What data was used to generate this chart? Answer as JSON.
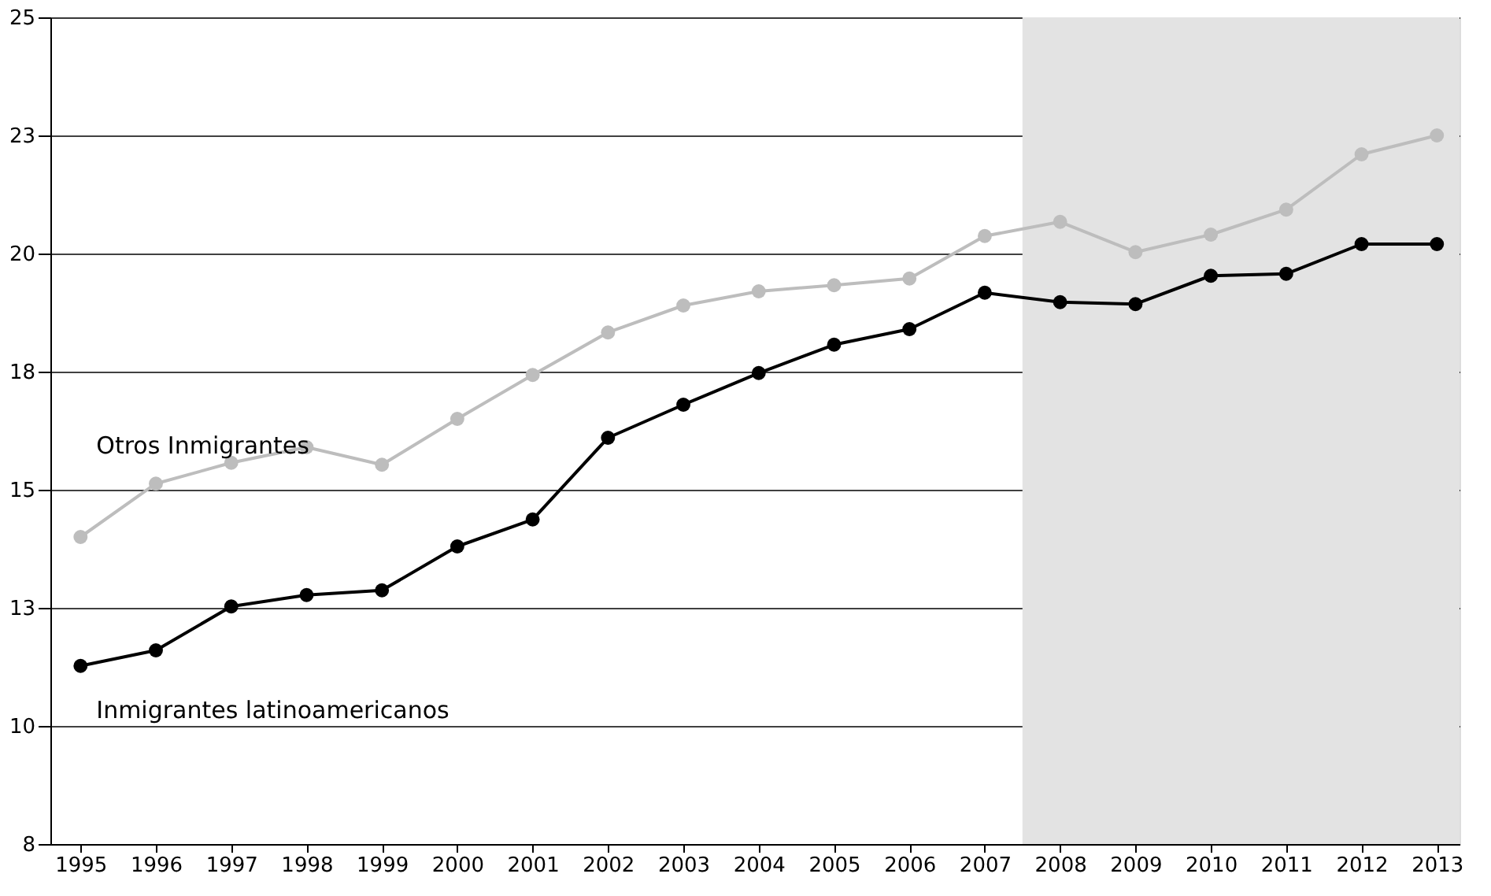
{
  "chart_data": {
    "type": "line",
    "x": [
      1995,
      1996,
      1997,
      1998,
      1999,
      2000,
      2001,
      2002,
      2003,
      2004,
      2005,
      2006,
      2007,
      2008,
      2009,
      2010,
      2011,
      2012,
      2013
    ],
    "xlim": [
      1994.6,
      2013.3
    ],
    "xticks": [
      1995,
      1996,
      1997,
      1998,
      1999,
      2000,
      2001,
      2002,
      2003,
      2004,
      2005,
      2006,
      2007,
      2008,
      2009,
      2010,
      2011,
      2012,
      2013
    ],
    "ylim": [
      7.5,
      25
    ],
    "yticks": [
      {
        "value": 7.5,
        "label": "8"
      },
      10,
      {
        "value": 12.5,
        "label": "13"
      },
      15,
      {
        "value": 17.5,
        "label": "18"
      },
      20,
      {
        "value": 22.5,
        "label": "23"
      },
      25
    ],
    "grid": "y",
    "marker": "circle",
    "line_style": "solid",
    "bands": [
      {
        "axis": "x",
        "from": 2007.5,
        "to": 2013.3,
        "color": "#e3e3e3"
      }
    ],
    "series": [
      {
        "name": "Otros Inmigrantes",
        "color": "#bdbdbd",
        "values": [
          14.0,
          15.13,
          15.57,
          15.9,
          15.53,
          16.5,
          17.43,
          18.33,
          18.9,
          19.2,
          19.33,
          19.47,
          20.37,
          20.67,
          20.03,
          20.4,
          20.93,
          22.1,
          22.5
        ]
      },
      {
        "name": "Inmigrantes  latinoamericanos",
        "color": "#000000",
        "values": [
          11.27,
          11.6,
          12.53,
          12.77,
          12.87,
          13.8,
          14.37,
          16.1,
          16.8,
          17.47,
          18.07,
          18.4,
          19.17,
          18.97,
          18.93,
          19.53,
          19.57,
          20.2,
          20.2
        ]
      }
    ]
  }
}
